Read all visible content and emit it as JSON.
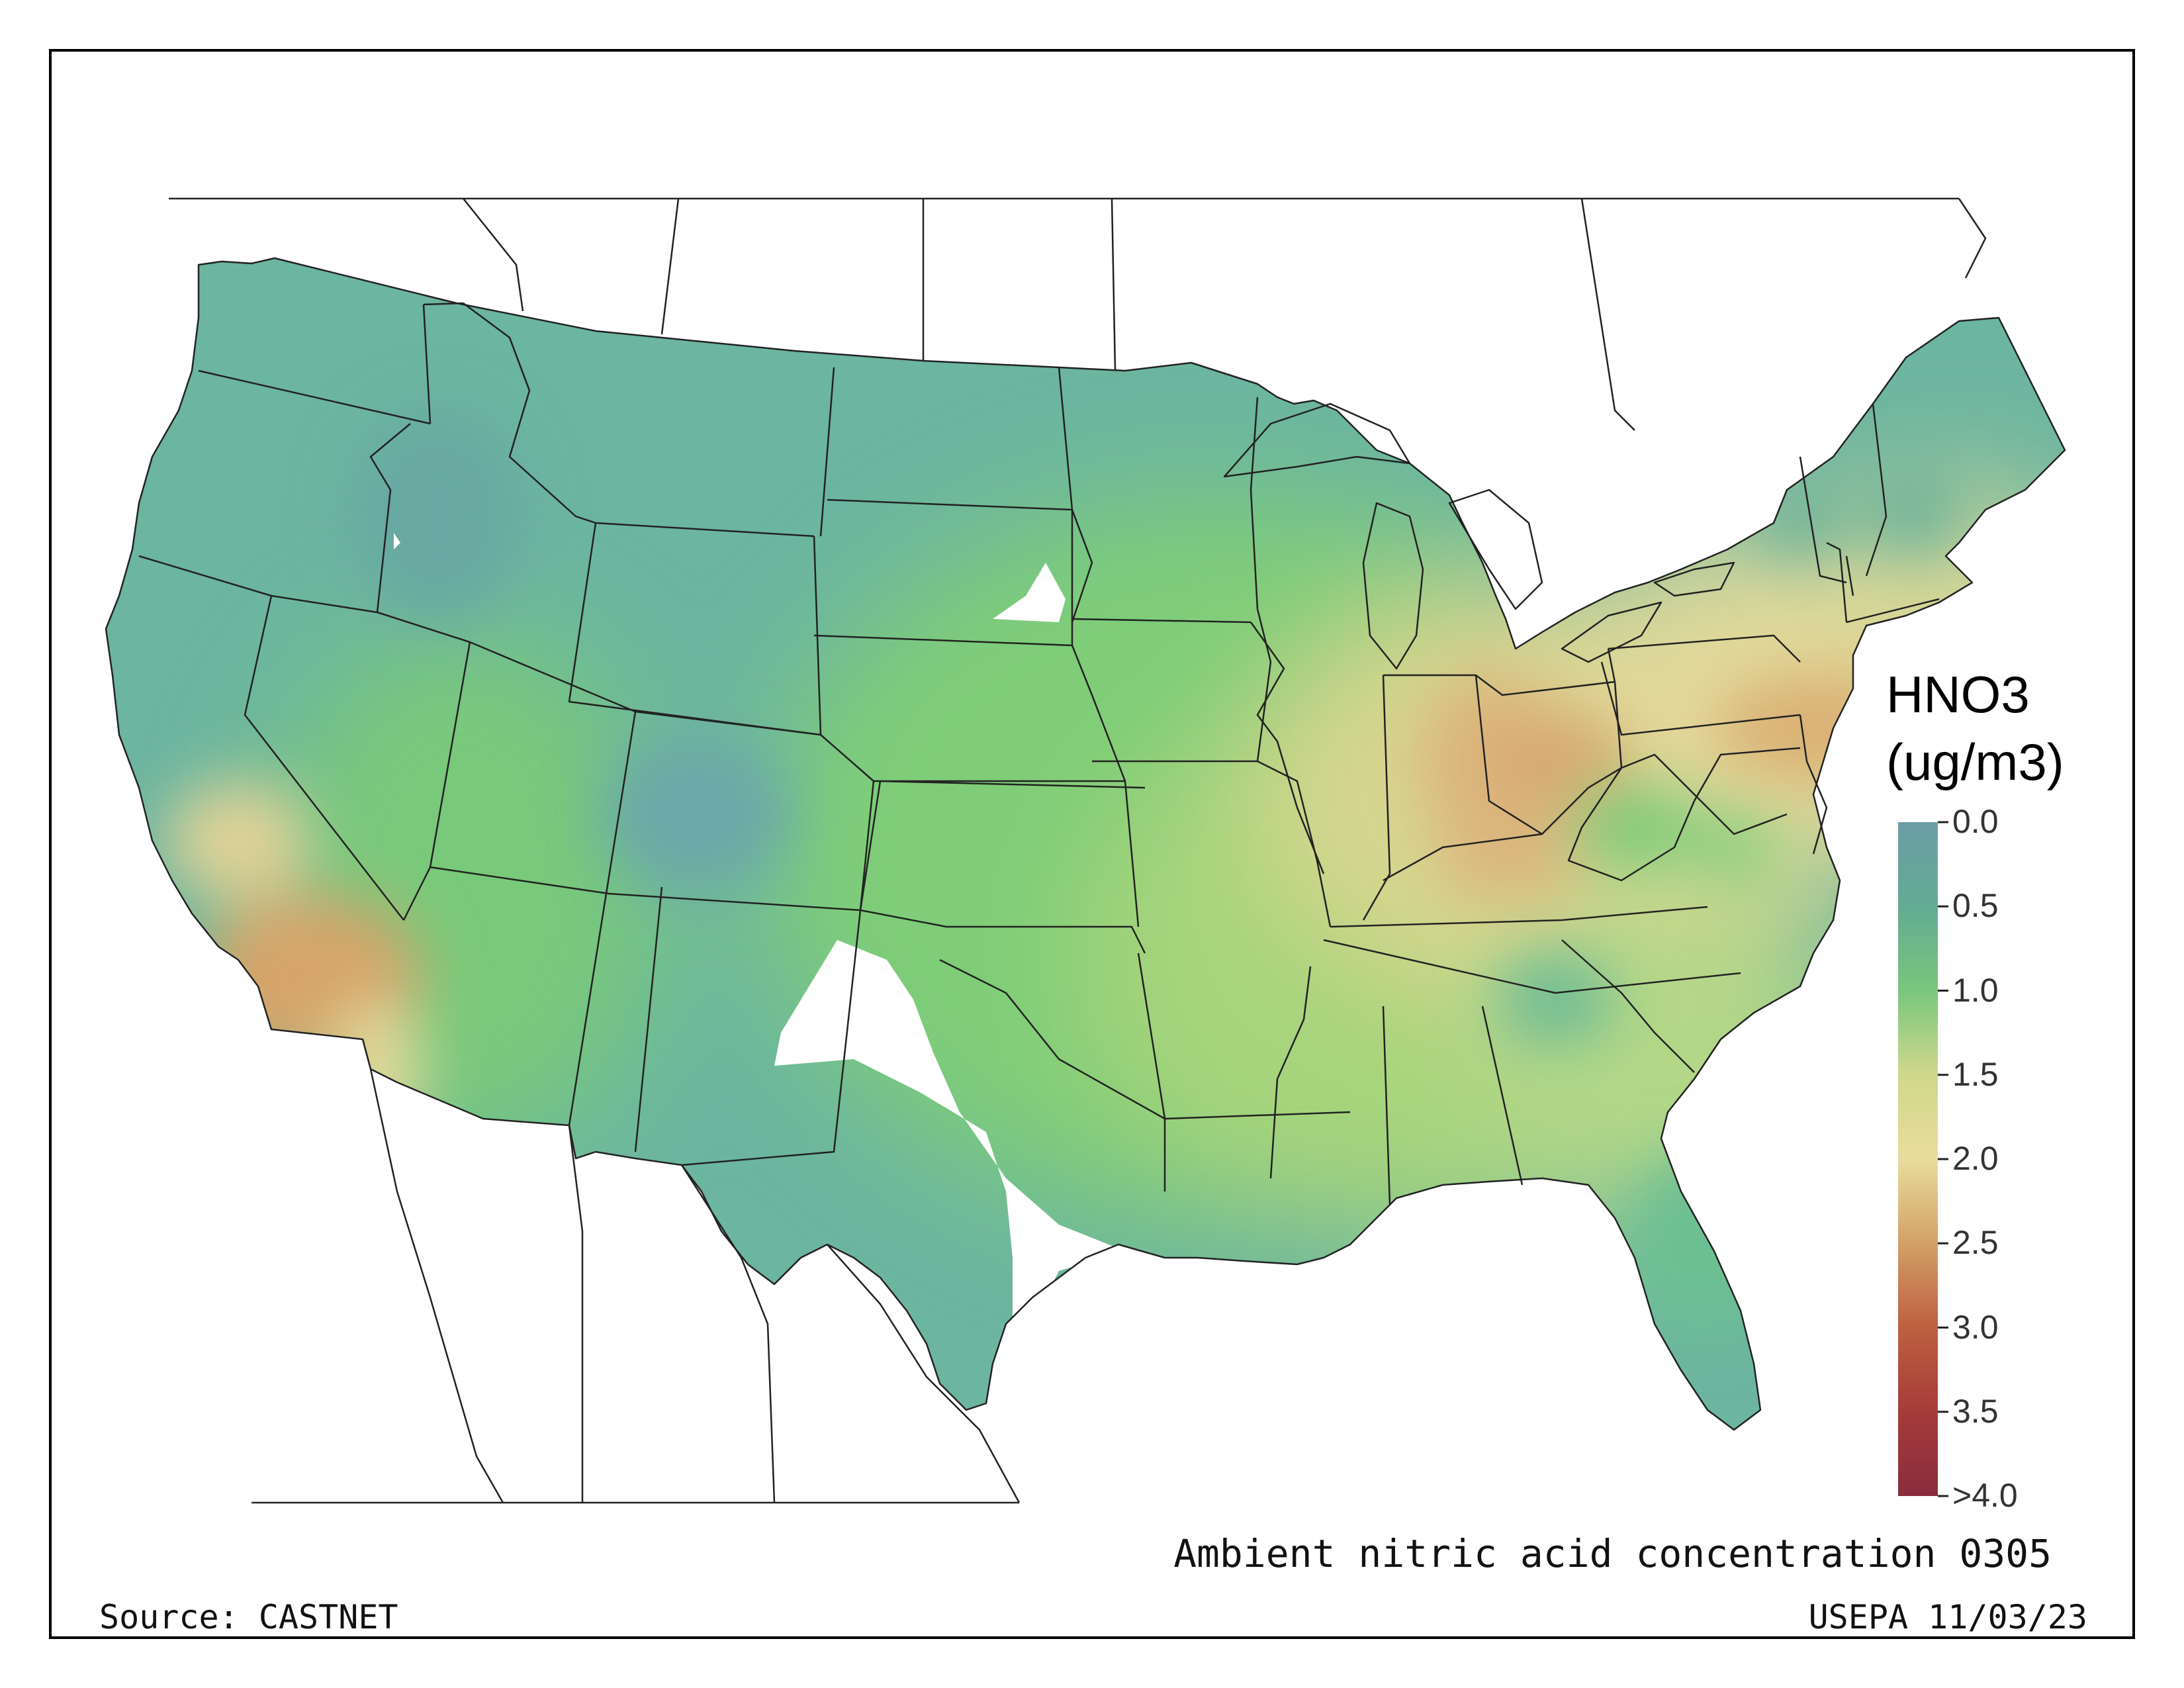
{
  "map": {
    "title": "Ambient nitric acid concentration 0305",
    "source": "Source: CASTNET",
    "credit": "USEPA 11/03/23"
  },
  "legend": {
    "title_line1": "HNO3",
    "title_line2": "(ug/m3)",
    "ticks": [
      "0.0",
      "0.5",
      "1.0",
      "1.5",
      "2.0",
      "2.5",
      "3.0",
      "3.5",
      ">4.0"
    ],
    "colors": [
      "#6c9ea7",
      "#62ab93",
      "#79c77c",
      "#cfd88c",
      "#e9dc9c",
      "#d3a067",
      "#bd603f",
      "#a53c3a",
      "#8a2c3e"
    ]
  },
  "colors": {
    "low": "#6cb5a0",
    "mid_low": "#7fcd78",
    "mid": "#a6d47c",
    "mid_high": "#e2d99a",
    "high": "#d6a46b",
    "boundary": "#222222"
  }
}
